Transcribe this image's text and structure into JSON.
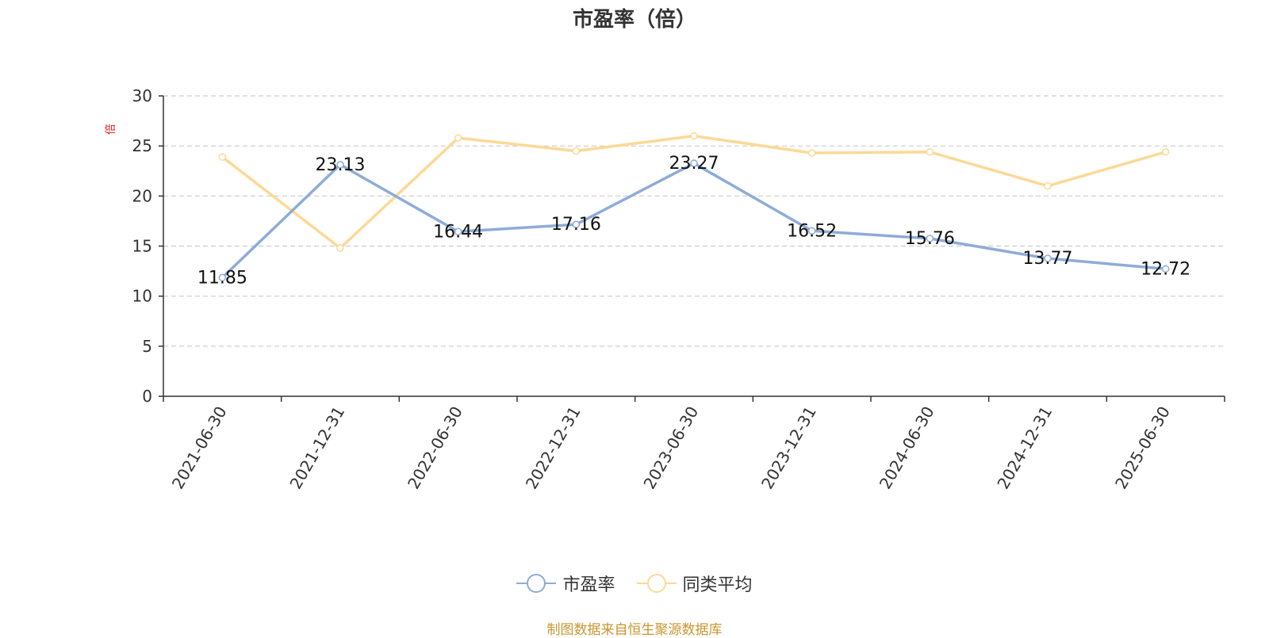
{
  "colors": {
    "series1": "#8eacd8",
    "series2": "#fcd996",
    "axis": "#333333",
    "grid": "#cccccc",
    "unit": "#e02020",
    "source": "#c9962f"
  },
  "source_note": "制图数据来自恒生聚源数据库",
  "chart_data": {
    "type": "line",
    "title": "市盈率（倍）",
    "ylabel": "倍",
    "xlabel": "",
    "categories": [
      "2021-06-30",
      "2021-12-31",
      "2022-06-30",
      "2022-12-31",
      "2023-06-30",
      "2023-12-31",
      "2024-06-30",
      "2024-12-31",
      "2025-06-30"
    ],
    "ylim": [
      0,
      30
    ],
    "yticks": [
      "0",
      "5",
      "10",
      "15",
      "20",
      "25",
      "30"
    ],
    "grid": true,
    "legend_position": "bottom",
    "series": [
      {
        "name": "市盈率",
        "values": [
          11.85,
          23.13,
          16.44,
          17.16,
          23.27,
          16.52,
          15.76,
          13.77,
          12.72
        ],
        "labels": [
          "11.85",
          "23.13",
          "16.44",
          "17.16",
          "23.27",
          "16.52",
          "15.76",
          "13.77",
          "12.72"
        ]
      },
      {
        "name": "同类平均",
        "values": [
          23.9,
          14.8,
          25.8,
          24.5,
          26.0,
          24.3,
          24.4,
          21.0,
          24.4
        ]
      }
    ]
  }
}
